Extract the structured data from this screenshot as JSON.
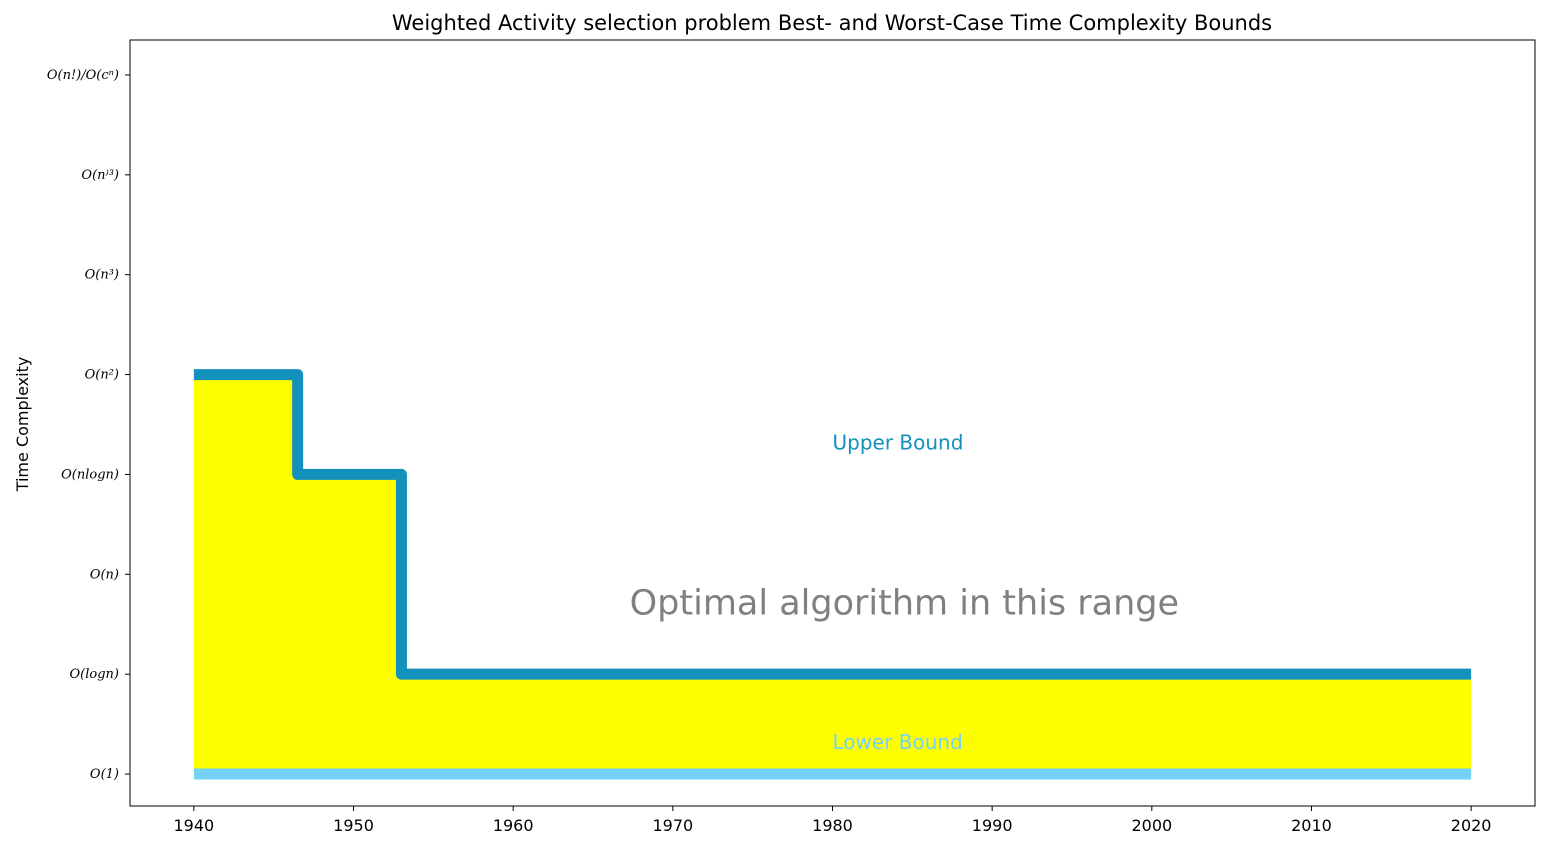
{
  "chart_data": {
    "type": "line",
    "title": "Weighted Activity selection problem Best- and Worst-Case Time Complexity Bounds",
    "xlabel": "",
    "ylabel": "Time Complexity",
    "xlim": [
      1936,
      2024
    ],
    "ylim": [
      -0.32,
      7.35
    ],
    "x_ticks": [
      1940,
      1950,
      1960,
      1970,
      1980,
      1990,
      2000,
      2010,
      2020
    ],
    "y_ticks": [
      {
        "value": 0,
        "label": "O(1)"
      },
      {
        "value": 1,
        "label": "O(logn)"
      },
      {
        "value": 2,
        "label": "O(n)"
      },
      {
        "value": 3,
        "label": "O(nlogn)"
      },
      {
        "value": 4,
        "label": "O(n²)"
      },
      {
        "value": 5,
        "label": "O(n³)"
      },
      {
        "value": 6,
        "label": "O(n⁾³)"
      },
      {
        "value": 7,
        "label": "O(n!)/O(cⁿ)"
      }
    ],
    "series": [
      {
        "name": "Upper Bound",
        "color": "#1490bd",
        "step": "post",
        "x": [
          1940,
          1946.5,
          1953,
          2020
        ],
        "y": [
          4,
          3,
          1,
          1
        ]
      },
      {
        "name": "Lower Bound",
        "color": "#73d2f5",
        "step": "post",
        "x": [
          1940,
          2020
        ],
        "y": [
          0,
          0
        ]
      }
    ],
    "fill_between": {
      "color": "#ffff00",
      "between": [
        "Lower Bound",
        "Upper Bound"
      ]
    },
    "annotations": [
      {
        "text": "Upper Bound",
        "x": 1980,
        "y": 3.25,
        "color": "#1490bd"
      },
      {
        "text": "Lower Bound",
        "x": 1980,
        "y": 0.25,
        "color": "#73d2f5"
      },
      {
        "text": "Optimal algorithm in this range",
        "x": 1984.5,
        "y": 1.6,
        "color": "#808080"
      }
    ],
    "grid": false,
    "legend": "none"
  }
}
